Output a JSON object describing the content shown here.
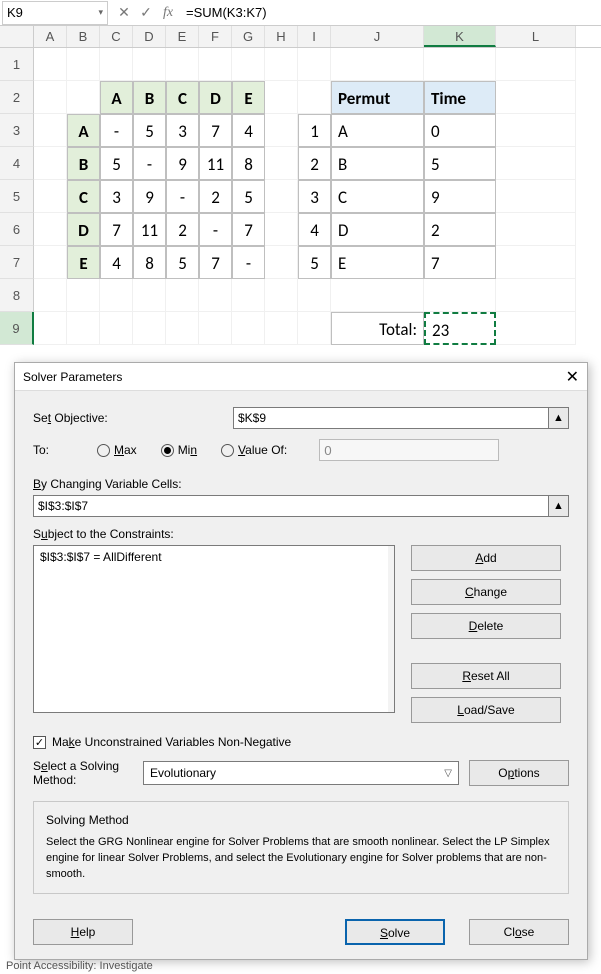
{
  "cell_ref": "K9",
  "formula": "=SUM(K3:K7)",
  "columns": [
    "A",
    "B",
    "C",
    "D",
    "E",
    "F",
    "G",
    "H",
    "I",
    "J",
    "K",
    "L"
  ],
  "active_col": "K",
  "active_row": 9,
  "matrix": {
    "headers": [
      "A",
      "B",
      "C",
      "D",
      "E"
    ],
    "rows": [
      {
        "label": "A",
        "vals": [
          "-",
          "5",
          "3",
          "7",
          "4"
        ]
      },
      {
        "label": "B",
        "vals": [
          "5",
          "-",
          "9",
          "11",
          "8"
        ]
      },
      {
        "label": "C",
        "vals": [
          "3",
          "9",
          "-",
          "2",
          "5"
        ]
      },
      {
        "label": "D",
        "vals": [
          "7",
          "11",
          "2",
          "-",
          "7"
        ]
      },
      {
        "label": "E",
        "vals": [
          "4",
          "8",
          "5",
          "7",
          "-"
        ]
      }
    ]
  },
  "permut": {
    "col_headers": [
      "Permut",
      "Time"
    ],
    "rows": [
      {
        "idx": "1",
        "p": "A",
        "t": "0"
      },
      {
        "idx": "2",
        "p": "B",
        "t": "5"
      },
      {
        "idx": "3",
        "p": "C",
        "t": "9"
      },
      {
        "idx": "4",
        "p": "D",
        "t": "2"
      },
      {
        "idx": "5",
        "p": "E",
        "t": "7"
      }
    ]
  },
  "total_label": "Total:",
  "total_value": "23",
  "dialog": {
    "title": "Solver Parameters",
    "set_objective_label": "Set Objective:",
    "objective_value": "$K$9",
    "to_label": "To:",
    "opt_max": "Max",
    "opt_min": "Min",
    "opt_value_of": "Value Of:",
    "value_of_field": "0",
    "selected_opt": "min",
    "changing_label": "By Changing Variable Cells:",
    "changing_value": "$I$3:$I$7",
    "constraints_label": "Subject to the Constraints:",
    "constraints": [
      "$I$3:$I$7 = AllDifferent"
    ],
    "btn_add": "Add",
    "btn_change": "Change",
    "btn_delete": "Delete",
    "btn_reset": "Reset All",
    "btn_loadsave": "Load/Save",
    "chk_unconstrained": "Make Unconstrained Variables Non-Negative",
    "chk_unconstrained_checked": true,
    "method_label": "Select a Solving Method:",
    "method_value": "Evolutionary",
    "btn_options": "Options",
    "info_title": "Solving Method",
    "info_text": "Select the GRG Nonlinear engine for Solver Problems that are smooth nonlinear. Select the LP Simplex engine for linear Solver Problems, and select the Evolutionary engine for Solver problems that are non-smooth.",
    "btn_help": "Help",
    "btn_solve": "Solve",
    "btn_close": "Close"
  },
  "status_bar": "Point           Accessibility: Investigate",
  "colors": {
    "green_header": "#e2efda",
    "blue_header": "#ddebf7",
    "excel_green": "#107c41",
    "dialog_bg": "#f0f0f0"
  }
}
